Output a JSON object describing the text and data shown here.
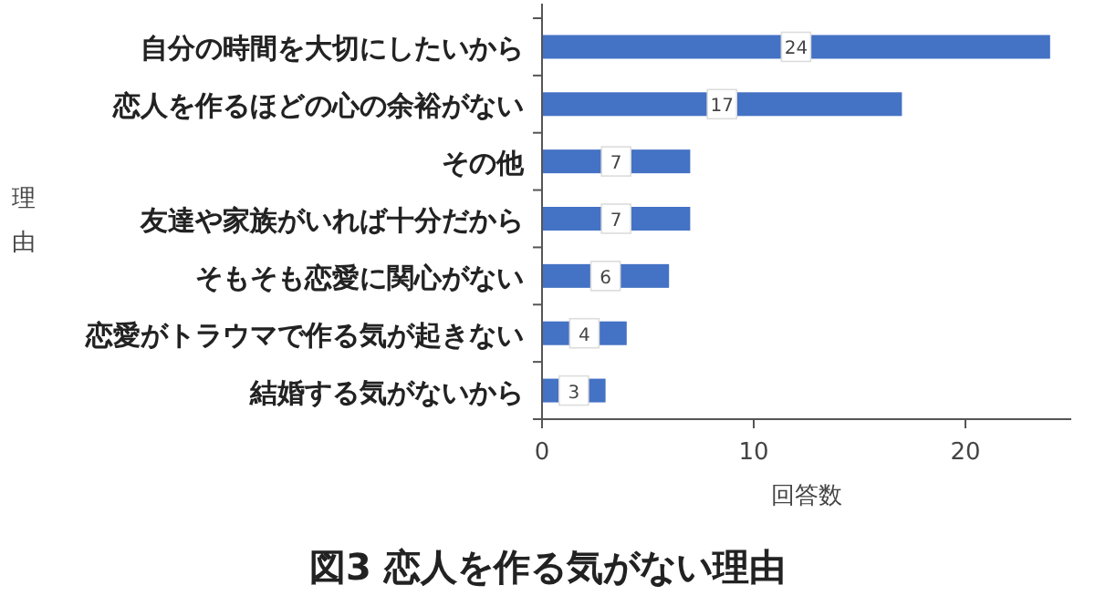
{
  "chart_data": {
    "type": "bar",
    "orientation": "horizontal",
    "title": "図3 恋人を作る気がない理由",
    "xlabel": "回答数",
    "ylabel": "理由",
    "categories": [
      "自分の時間を大切にしたいから",
      "恋人を作るほどの心の余裕がない",
      "その他",
      "友達や家族がいれば十分だから",
      "そもそも恋愛に関心がない",
      "恋愛がトラウマで作る気が起きない",
      "結婚する気がないから"
    ],
    "values": [
      24,
      17,
      7,
      7,
      6,
      4,
      3
    ],
    "color": "#4472c4",
    "xlim": [
      0,
      25
    ],
    "xticks": [
      0,
      10,
      20
    ],
    "grid": false,
    "data_labels": true
  }
}
